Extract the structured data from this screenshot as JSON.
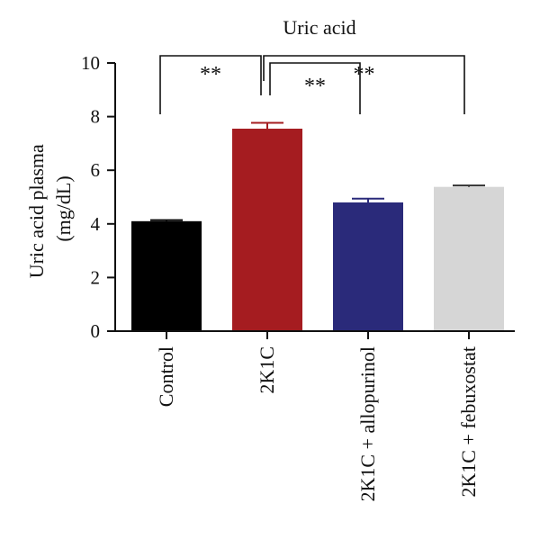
{
  "chart_data": {
    "type": "bar",
    "title": "Uric acid",
    "ylabel_line1": "Uric acid plasma",
    "ylabel_line2": "(mg/dL)",
    "xlabel": "",
    "ylim": [
      0,
      10
    ],
    "yticks": [
      "0",
      "2",
      "4",
      "6",
      "8",
      "10"
    ],
    "categories": [
      "Control",
      "2K1C",
      "2K1C + allopurinol",
      "2K1C + febuxostat"
    ],
    "values": [
      4.1,
      7.55,
      4.8,
      5.38
    ],
    "errors": [
      0.04,
      0.22,
      0.14,
      0.05
    ],
    "colors": [
      "#000000",
      "#a51c20",
      "#2a2a7a",
      "#d6d6d6"
    ],
    "significance": [
      {
        "from": 0,
        "to": 1,
        "label": "**"
      },
      {
        "from": 1,
        "to": 2,
        "label": "**"
      },
      {
        "from": 1,
        "to": 3,
        "label": "**"
      }
    ]
  }
}
